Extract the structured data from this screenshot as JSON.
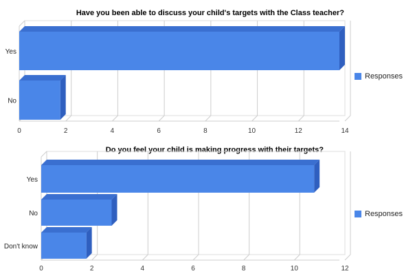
{
  "colors": {
    "bar_front": "#4a86e8",
    "bar_top": "#3a6fd0",
    "bar_side": "#2f5fbf",
    "grid": "#cccccc",
    "frame": "#dddddd"
  },
  "chart_data": [
    {
      "type": "bar",
      "orientation": "horizontal",
      "title": "Have you been able to discuss your child's targets with the Class teacher?",
      "categories": [
        "Yes",
        "No"
      ],
      "series": [
        {
          "name": "Responses",
          "values": [
            14,
            2
          ]
        }
      ],
      "xlim": [
        0,
        14
      ],
      "xticks": [
        "0",
        "2",
        "4",
        "6",
        "8",
        "10",
        "12",
        "14"
      ],
      "grid": true,
      "legend": "right"
    },
    {
      "type": "bar",
      "orientation": "horizontal",
      "title": "Do you feel your child is making progress with their targets?",
      "categories": [
        "Yes",
        "No",
        "Don't know"
      ],
      "series": [
        {
          "name": "Responses",
          "values": [
            11,
            3,
            2
          ]
        }
      ],
      "xlim": [
        0,
        12
      ],
      "xticks": [
        "0",
        "2",
        "4",
        "6",
        "8",
        "10",
        "12"
      ],
      "grid": true,
      "legend": "right"
    }
  ]
}
